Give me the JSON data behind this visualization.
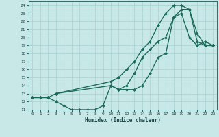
{
  "xlabel": "Humidex (Indice chaleur)",
  "ylabel": "",
  "background_color": "#c8e8e8",
  "grid_color": "#a8d0d0",
  "line_color": "#1a6b5a",
  "xlim": [
    -0.5,
    23.5
  ],
  "ylim": [
    11,
    24.5
  ],
  "xticks": [
    0,
    1,
    2,
    3,
    4,
    5,
    6,
    7,
    8,
    9,
    10,
    11,
    12,
    13,
    14,
    15,
    16,
    17,
    18,
    19,
    20,
    21,
    22,
    23
  ],
  "yticks": [
    11,
    12,
    13,
    14,
    15,
    16,
    17,
    18,
    19,
    20,
    21,
    22,
    23,
    24
  ],
  "curve1_x": [
    0,
    1,
    2,
    3,
    10,
    11,
    12,
    13,
    14,
    15,
    16,
    17,
    18,
    19,
    20,
    21,
    22,
    23
  ],
  "curve1_y": [
    12.5,
    12.5,
    12.5,
    13.0,
    14.0,
    13.5,
    14.0,
    15.5,
    17.5,
    18.5,
    19.5,
    20.0,
    22.5,
    23.5,
    23.5,
    19.5,
    19.0,
    19.0
  ],
  "curve2_x": [
    0,
    1,
    2,
    3,
    4,
    5,
    6,
    7,
    8,
    9,
    10,
    11,
    12,
    13,
    14,
    15,
    16,
    17,
    18,
    19,
    20,
    21,
    22,
    23
  ],
  "curve2_y": [
    12.5,
    12.5,
    12.5,
    12.0,
    11.5,
    11.0,
    11.0,
    11.0,
    11.0,
    11.5,
    14.0,
    13.5,
    13.5,
    13.5,
    14.0,
    15.5,
    17.5,
    18.0,
    22.5,
    23.0,
    20.0,
    19.0,
    19.5,
    19.0
  ],
  "curve3_x": [
    3,
    10,
    11,
    12,
    13,
    14,
    15,
    16,
    17,
    18,
    19,
    20,
    21,
    22,
    23
  ],
  "curve3_y": [
    13.0,
    14.5,
    15.0,
    16.0,
    17.0,
    18.5,
    19.5,
    21.5,
    23.0,
    24.0,
    24.0,
    23.5,
    20.5,
    19.0,
    19.0
  ],
  "markersize": 2.5,
  "linewidth": 1.0
}
